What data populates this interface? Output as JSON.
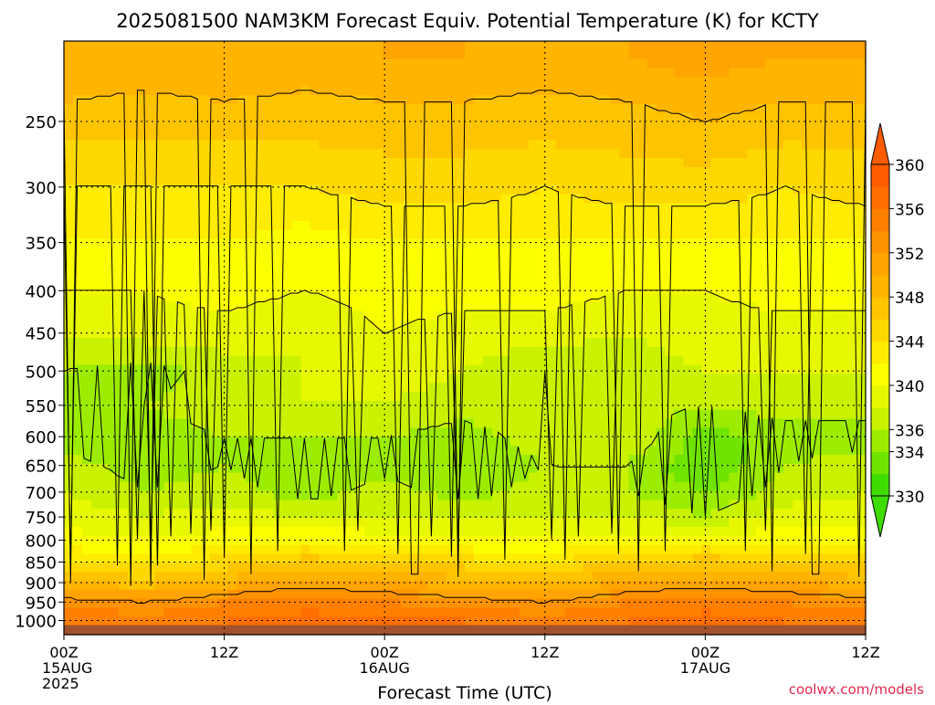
{
  "chart_data": {
    "type": "heatmap",
    "title": "2025081500 NAM3KM Forecast Equiv. Potential Temperature (K) for KCTY",
    "xlabel": "Forecast Time (UTC)",
    "credit": "coolwx.com/models",
    "x_ticks": [
      {
        "hour": 0,
        "lines": [
          "00Z",
          "15AUG",
          "2025"
        ]
      },
      {
        "hour": 12,
        "lines": [
          "12Z"
        ]
      },
      {
        "hour": 24,
        "lines": [
          "00Z",
          "16AUG"
        ]
      },
      {
        "hour": 36,
        "lines": [
          "12Z"
        ]
      },
      {
        "hour": 48,
        "lines": [
          "00Z",
          "17AUG"
        ]
      },
      {
        "hour": 60,
        "lines": [
          "12Z"
        ]
      }
    ],
    "xlim": [
      0,
      60
    ],
    "y_scale": "log",
    "ylim": [
      1040,
      200
    ],
    "y_ticks": [
      250,
      300,
      350,
      400,
      450,
      500,
      550,
      600,
      650,
      700,
      750,
      800,
      850,
      900,
      950,
      1000
    ],
    "grid": true,
    "colorbar": {
      "ticks": [
        330,
        334,
        336,
        340,
        344,
        348,
        352,
        356,
        360
      ],
      "levels": [
        330,
        332,
        334,
        336,
        338,
        340,
        342,
        344,
        346,
        348,
        350,
        352,
        354,
        356,
        358,
        360
      ],
      "colors": [
        "#3fdc00",
        "#6ee400",
        "#9cec00",
        "#c8f200",
        "#e8f800",
        "#fbff00",
        "#ffec00",
        "#ffd800",
        "#ffc400",
        "#ffb400",
        "#ffa400",
        "#ff9200",
        "#ff8000",
        "#ff6e00",
        "#ff5c00"
      ]
    },
    "ground_color": "#a0522d",
    "profile_levels_hpa": [
      1000,
      950,
      900,
      850,
      800,
      750,
      700,
      650,
      600,
      550,
      500,
      450,
      400,
      350,
      300,
      250,
      210
    ],
    "times_h": [
      0,
      6,
      12,
      18,
      24,
      30,
      36,
      42,
      48,
      54,
      60
    ],
    "theta_e_K": [
      [
        356,
        355,
        356,
        357,
        357,
        356,
        355,
        356,
        357,
        356,
        355
      ],
      [
        353,
        352,
        354,
        355,
        354,
        353,
        352,
        354,
        355,
        354,
        353
      ],
      [
        348,
        347,
        349,
        351,
        350,
        349,
        348,
        350,
        351,
        350,
        349
      ],
      [
        344,
        343,
        345,
        347,
        346,
        345,
        344,
        346,
        347,
        346,
        345
      ],
      [
        341,
        340,
        341,
        342,
        341,
        340,
        340,
        341,
        342,
        341,
        341
      ],
      [
        339,
        338,
        339,
        338,
        338,
        338,
        338,
        338,
        336,
        339,
        339
      ],
      [
        338,
        336,
        337,
        335,
        337,
        335,
        337,
        336,
        334,
        337,
        338
      ],
      [
        337,
        335,
        336,
        334,
        335,
        334,
        336,
        336,
        332,
        336,
        337
      ],
      [
        334,
        335,
        336,
        336,
        336,
        335,
        337,
        338,
        333,
        335,
        335
      ],
      [
        335,
        336,
        337,
        338,
        338,
        337,
        338,
        337,
        336,
        337,
        337
      ],
      [
        336,
        335,
        337,
        338,
        339,
        338,
        336,
        337,
        338,
        338,
        338
      ],
      [
        338,
        339,
        339,
        338,
        340,
        339,
        339,
        338,
        339,
        339,
        339
      ],
      [
        340,
        340,
        341,
        340,
        341,
        341,
        341,
        340,
        340,
        341,
        341
      ],
      [
        342,
        342,
        342,
        341,
        342,
        342,
        342,
        342,
        342,
        342,
        342
      ],
      [
        344,
        344,
        344,
        344,
        345,
        345,
        344,
        345,
        345,
        344,
        345
      ],
      [
        347,
        347,
        347,
        347,
        347,
        347,
        347,
        347,
        348,
        347,
        347
      ],
      [
        350,
        349,
        350,
        349,
        350,
        350,
        349,
        350,
        351,
        350,
        350
      ]
    ]
  }
}
